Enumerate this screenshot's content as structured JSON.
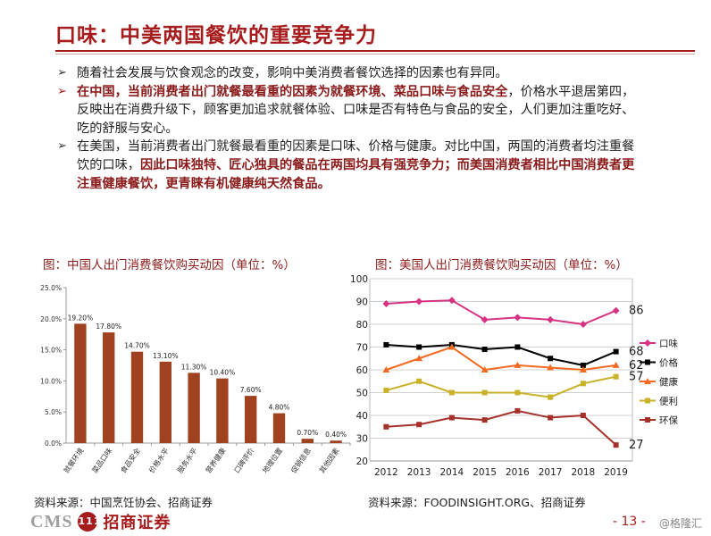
{
  "header": {
    "title": "口味：中美两国餐饮的重要竞争力"
  },
  "bullets": {
    "b1": "随着社会发展与饮食观念的改变，影响中美消费者餐饮选择的因素也有异同。",
    "b2_hl": "在中国，当前消费者出门就餐最看重的因素为就餐环境、菜品口味与食品安全",
    "b2_rest": "，价格水平退居第四，反映出在消费升级下，顾客更加追求就餐体验、口味是否有特色与食品的安全，人们更加注重吃好、吃的舒服与安心。",
    "b3_a": "在美国，当前消费者出门就餐最看重的因素是口味、价格与健康。对比中国，两国的消费者均注重餐饮的口味，",
    "b3_hl": "因此口味独特、匠心独具的餐品在两国均具有强竞争力；而美国消费者相比中国消费者更注重健康餐饮，更青睐有机健康纯天然食品。"
  },
  "chart_titles": {
    "left": "图：中国人出门消费餐饮购买动因（单位：%）",
    "right": "图：美国人出门消费餐饮购买动因（单位：%）"
  },
  "sources": {
    "left": "资料来源：中国烹饪协会、招商证券",
    "right": "资料来源：FOODINSIGHT.ORG、招商证券"
  },
  "footer": {
    "logo_en": "CMS",
    "logo_badge": "111",
    "logo_cn": "招商证券",
    "page": "- 13 -",
    "watermark": "@格隆汇"
  },
  "colors": {
    "accent": "#a61c1c",
    "bar": "#a0411f"
  },
  "chart_data": [
    {
      "type": "bar",
      "title": "图：中国人出门消费餐饮购买动因（单位：%）",
      "categories": [
        "就餐环境",
        "菜品口味",
        "食品安全",
        "价格水平",
        "服务水平",
        "营养健康",
        "口碑评价",
        "地理位置",
        "促销信息",
        "其他因素"
      ],
      "values": [
        19.2,
        17.8,
        14.7,
        13.1,
        11.3,
        10.4,
        7.6,
        4.8,
        0.7,
        0.4
      ],
      "data_labels": [
        "19.20%",
        "17.80%",
        "14.70%",
        "13.10%",
        "11.30%",
        "10.40%",
        "7.60%",
        "4.80%",
        "0.70%",
        "0.40%"
      ],
      "yticks": [
        "0.0%",
        "5.0%",
        "10.0%",
        "15.0%",
        "20.0%",
        "25.0%"
      ],
      "ylim": [
        0,
        25
      ],
      "grid": false,
      "color": "#a0411f"
    },
    {
      "type": "line",
      "title": "图：美国人出门消费餐饮购买动因（单位：%）",
      "x": [
        "2012",
        "2013",
        "2014",
        "2015",
        "2016",
        "2017",
        "2018",
        "2019"
      ],
      "ylim": [
        20,
        100
      ],
      "yticks": [
        "20",
        "30",
        "40",
        "50",
        "60",
        "70",
        "80",
        "90",
        "100"
      ],
      "grid": true,
      "legend_position": "right",
      "series": [
        {
          "name": "口味",
          "values": [
            89,
            90,
            90.5,
            82,
            83,
            82,
            80,
            86
          ],
          "color": "#d63384",
          "marker": "diamond",
          "end_label": "86"
        },
        {
          "name": "价格",
          "values": [
            71,
            70,
            71,
            69,
            70,
            65,
            62,
            68
          ],
          "color": "#000000",
          "marker": "square",
          "end_label": "68"
        },
        {
          "name": "健康",
          "values": [
            60,
            65,
            70,
            60,
            62,
            61,
            60,
            62
          ],
          "color": "#f26b22",
          "marker": "triangle",
          "end_label": "62"
        },
        {
          "name": "便利",
          "values": [
            51,
            55,
            50,
            50,
            50,
            48,
            54,
            57
          ],
          "color": "#c9b128",
          "marker": "square",
          "end_label": "57"
        },
        {
          "name": "环保",
          "values": [
            35,
            36,
            39,
            38,
            42,
            39,
            40,
            27
          ],
          "color": "#a4312a",
          "marker": "square",
          "end_label": "27"
        }
      ]
    }
  ]
}
